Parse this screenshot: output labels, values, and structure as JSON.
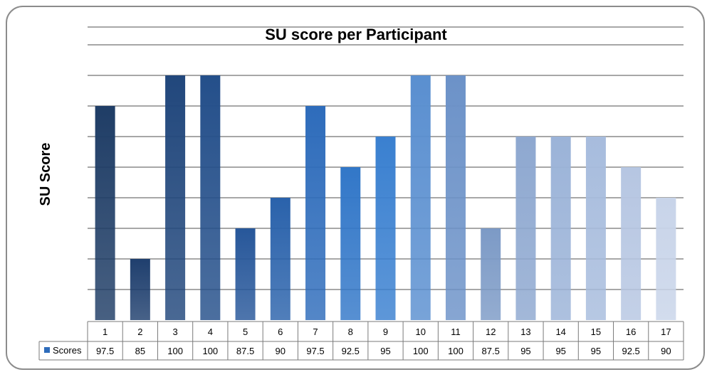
{
  "chart_data": {
    "type": "bar",
    "title": "SU score per Participant",
    "ylabel": "SU Score",
    "xlabel": "",
    "ylim": [
      80,
      100
    ],
    "grid": true,
    "legend": "table-bottom",
    "categories": [
      "1",
      "2",
      "3",
      "4",
      "5",
      "6",
      "7",
      "8",
      "9",
      "10",
      "11",
      "12",
      "13",
      "14",
      "15",
      "16",
      "17"
    ],
    "series": [
      {
        "name": "Scores",
        "values": [
          97.5,
          85,
          100,
          100,
          87.5,
          90,
          97.5,
          92.5,
          95,
          100,
          100,
          87.5,
          95,
          95,
          95,
          92.5,
          90
        ],
        "value_labels": [
          "97.5",
          "85",
          "100",
          "100",
          "87.5",
          "90",
          "97.5",
          "92.5",
          "95",
          "100",
          "100",
          "87.5",
          "95",
          "95",
          "95",
          "92.5",
          "90"
        ]
      }
    ],
    "colors": [
      "#1f3d66",
      "#1f3f6e",
      "#21477c",
      "#244f8a",
      "#27579a",
      "#2a62ab",
      "#2e6cbb",
      "#3277c8",
      "#3a80d0",
      "#5a8fd0",
      "#6c92c8",
      "#7c9ac6",
      "#8ea8d0",
      "#9bb3d8",
      "#a7bcdd",
      "#b6c6e2",
      "#c8d4e9"
    ]
  }
}
